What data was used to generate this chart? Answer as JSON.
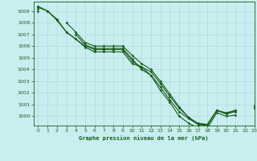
{
  "title": "Graphe pression niveau de la mer (hPa)",
  "bg_color": "#c8eef0",
  "grid_color": "#b0d8da",
  "line_color": "#1a5c1a",
  "xlim": [
    -0.5,
    23
  ],
  "ylim": [
    999.2,
    1009.8
  ],
  "yticks": [
    1000,
    1001,
    1002,
    1003,
    1004,
    1005,
    1006,
    1007,
    1008,
    1009
  ],
  "xticks": [
    0,
    1,
    2,
    3,
    4,
    5,
    6,
    7,
    8,
    9,
    10,
    11,
    12,
    13,
    14,
    15,
    16,
    17,
    18,
    19,
    20,
    21,
    22,
    23
  ],
  "series": [
    [
      1009.4,
      1009.0,
      1008.3,
      1007.2,
      1006.6,
      1005.9,
      1005.5,
      1005.5,
      1005.5,
      1005.5,
      1004.5,
      1004.2,
      1003.5,
      1002.5,
      1001.4,
      1000.4,
      999.8,
      999.3,
      999.3,
      1000.5,
      1000.3,
      1000.5,
      null,
      1000.8
    ],
    [
      1009.3,
      1009.0,
      1008.2,
      1007.2,
      1006.6,
      1006.0,
      1005.7,
      1005.7,
      1005.7,
      1005.7,
      1004.7,
      1004.2,
      1003.8,
      1002.8,
      1001.7,
      1000.7,
      999.9,
      999.4,
      999.3,
      1000.5,
      1000.2,
      1000.4,
      null,
      1000.8
    ],
    [
      1009.2,
      null,
      null,
      1008.0,
      1007.2,
      1006.3,
      1006.0,
      1006.0,
      1006.0,
      1006.0,
      1005.2,
      1004.5,
      1004.0,
      1003.0,
      1001.9,
      1000.8,
      999.9,
      999.3,
      999.2,
      1000.5,
      1000.2,
      1000.5,
      null,
      1000.9
    ],
    [
      1009.0,
      null,
      null,
      null,
      1007.0,
      1006.1,
      1005.8,
      1005.8,
      1005.8,
      1005.8,
      1004.9,
      1004.0,
      1003.5,
      1002.2,
      1001.2,
      1000.0,
      999.4,
      999.0,
      999.0,
      1000.3,
      1000.0,
      1000.1,
      null,
      1000.7
    ]
  ]
}
